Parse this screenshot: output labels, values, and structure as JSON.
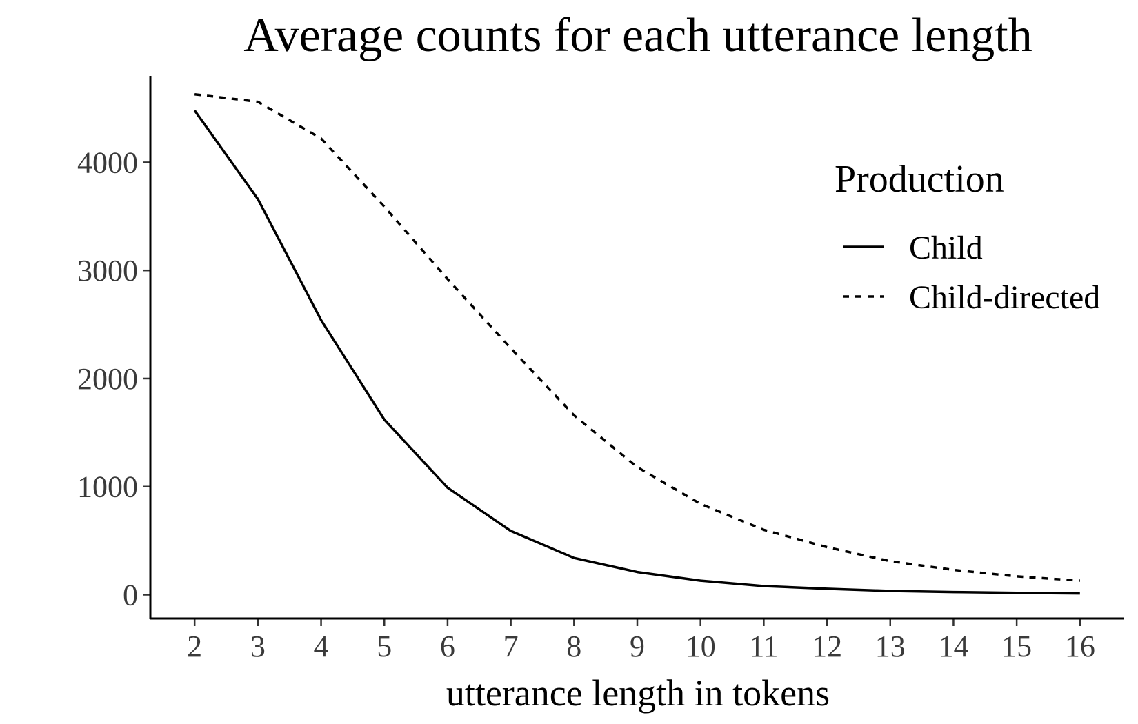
{
  "chart_data": {
    "type": "line",
    "title": "Average counts for each utterance length",
    "xlabel": "utterance length in tokens",
    "ylabel": "",
    "x": [
      2,
      3,
      4,
      5,
      6,
      7,
      8,
      9,
      10,
      11,
      12,
      13,
      14,
      15,
      16
    ],
    "xticks": [
      2,
      3,
      4,
      5,
      6,
      7,
      8,
      9,
      10,
      11,
      12,
      13,
      14,
      15,
      16
    ],
    "yticks": [
      0,
      1000,
      2000,
      3000,
      4000
    ],
    "xlim": [
      1.3,
      16.7
    ],
    "ylim": [
      -220,
      4800
    ],
    "grid": false,
    "legend": {
      "title": "Production",
      "position": "top-right"
    },
    "series": [
      {
        "name": "Child",
        "style": "solid",
        "color": "#000000",
        "values": [
          4480,
          3660,
          2540,
          1620,
          990,
          590,
          340,
          210,
          130,
          80,
          55,
          35,
          25,
          18,
          12
        ]
      },
      {
        "name": "Child-directed",
        "style": "dashed",
        "color": "#000000",
        "values": [
          4630,
          4560,
          4220,
          3590,
          2920,
          2280,
          1660,
          1180,
          840,
          600,
          440,
          310,
          230,
          170,
          130
        ]
      }
    ]
  }
}
